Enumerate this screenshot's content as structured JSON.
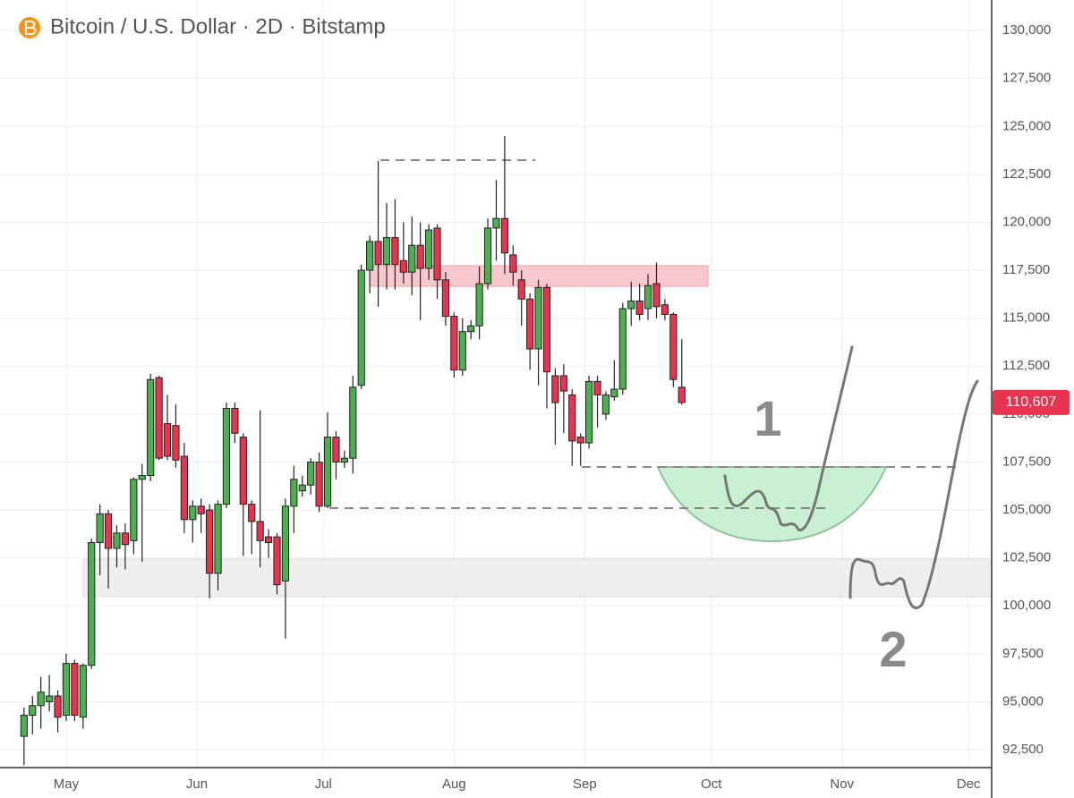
{
  "chart_data": {
    "type": "candlestick",
    "title": "Bitcoin / U.S. Dollar · 2D · Bitstamp",
    "x": [
      -10,
      -8,
      -6,
      -4,
      -2,
      0,
      2,
      4,
      6,
      8,
      10,
      12,
      14,
      16,
      18,
      20,
      22,
      24,
      26,
      28,
      30,
      32,
      34,
      36,
      38,
      40,
      42,
      44,
      46,
      48,
      50,
      52,
      54,
      56,
      58,
      60,
      62,
      64,
      66,
      68,
      70,
      72,
      74,
      76,
      78,
      80,
      82,
      84,
      86,
      88,
      90,
      92,
      94,
      96,
      98,
      100,
      102,
      104,
      106,
      108,
      110,
      112,
      114,
      116,
      118,
      120,
      122,
      124,
      126,
      128,
      130,
      132,
      134,
      136,
      138,
      140,
      142,
      144,
      146
    ],
    "open": [
      93200,
      94300,
      94800,
      95000,
      95300,
      94300,
      97000,
      94200,
      96900,
      103300,
      104800,
      103000,
      103800,
      103400,
      106600,
      106800,
      111900,
      109500,
      109400,
      107800,
      104500,
      105200,
      105000,
      101700,
      105300,
      110300,
      108800,
      105300,
      104400,
      103600,
      103600,
      101300,
      105200,
      106000,
      106300,
      107500,
      105200,
      108800,
      107500,
      107700,
      111500,
      117500,
      119000,
      117800,
      119200,
      118000,
      117400,
      118800,
      117600,
      119700,
      117000,
      115100,
      112300,
      114300,
      114600,
      116800,
      119700,
      120200,
      118300,
      117000,
      116000,
      113400,
      116600,
      112000,
      112000,
      111000,
      108800,
      108500,
      111700,
      110000,
      110900,
      111300,
      115500,
      115900,
      115500,
      116800,
      115700,
      115200,
      111400
    ],
    "high": [
      94700,
      95300,
      96300,
      96400,
      95600,
      97500,
      97200,
      97000,
      103500,
      105300,
      105000,
      104200,
      104300,
      106700,
      107400,
      112100,
      112000,
      111000,
      110500,
      108500,
      105500,
      105600,
      105300,
      105500,
      110600,
      110600,
      109000,
      105500,
      110200,
      104000,
      103800,
      105600,
      107300,
      106800,
      107700,
      108000,
      110100,
      109100,
      108100,
      112000,
      117800,
      119300,
      123200,
      121000,
      121200,
      120000,
      120300,
      120000,
      119900,
      119900,
      117400,
      115300,
      115000,
      114900,
      117700,
      120200,
      122200,
      124500,
      118800,
      117500,
      116300,
      117000,
      116800,
      112400,
      112600,
      111300,
      109000,
      112000,
      112000,
      111200,
      112800,
      115800,
      116900,
      116800,
      117300,
      117900,
      116000,
      115300,
      113900
    ],
    "low": [
      91700,
      93300,
      93600,
      94500,
      93400,
      94000,
      94000,
      93600,
      96700,
      101600,
      100900,
      102000,
      101900,
      102700,
      102300,
      106500,
      107600,
      107600,
      107200,
      103800,
      103300,
      103800,
      100400,
      100800,
      105100,
      108500,
      102600,
      102700,
      102000,
      102500,
      100600,
      98300,
      103800,
      105700,
      105800,
      104900,
      105100,
      106600,
      107200,
      106900,
      111300,
      116300,
      115600,
      116500,
      116500,
      116800,
      116200,
      114900,
      117000,
      116000,
      114600,
      111900,
      112000,
      113900,
      113900,
      116500,
      118000,
      117300,
      116700,
      114600,
      112300,
      111500,
      110300,
      108400,
      109000,
      107300,
      107300,
      108200,
      109300,
      109700,
      110700,
      111000,
      114600,
      114900,
      114900,
      115000,
      114900,
      111400,
      110500
    ],
    "close": [
      94300,
      94800,
      95500,
      95300,
      94200,
      97000,
      94300,
      96900,
      103300,
      104800,
      103000,
      103800,
      103200,
      106600,
      106800,
      111800,
      107700,
      107800,
      107600,
      104500,
      105200,
      104800,
      101700,
      105300,
      110300,
      109000,
      105300,
      104400,
      103400,
      103300,
      101100,
      105200,
      106600,
      106300,
      107500,
      105200,
      108800,
      107500,
      107700,
      111400,
      117500,
      119000,
      117800,
      119200,
      117800,
      117400,
      118800,
      117600,
      119600,
      117000,
      115100,
      112300,
      114300,
      114600,
      116800,
      119700,
      120200,
      118400,
      117400,
      116000,
      113400,
      116600,
      112200,
      110600,
      111200,
      108600,
      108500,
      111700,
      111000,
      111000,
      111300,
      115500,
      115900,
      115200,
      116700,
      115600,
      115200,
      111800,
      110607
    ],
    "up_color": "#4caf50",
    "down_color": "#e8344e",
    "xlim": [
      -15.7,
      219.5
    ],
    "xticks": [
      {
        "value": 0,
        "label": "May"
      },
      {
        "value": 31,
        "label": "Jun"
      },
      {
        "value": 61,
        "label": "Jul"
      },
      {
        "value": 92,
        "label": "Aug"
      },
      {
        "value": 123,
        "label": "Sep"
      },
      {
        "value": 153,
        "label": "Oct"
      },
      {
        "value": 184,
        "label": "Nov"
      },
      {
        "value": 214,
        "label": "Dec"
      }
    ],
    "ylim": [
      91570,
      131590
    ],
    "yticks": [
      {
        "value": 92500,
        "label": "92,500"
      },
      {
        "value": 95000,
        "label": "95,000"
      },
      {
        "value": 97500,
        "label": "97,500"
      },
      {
        "value": 100000,
        "label": "100,000"
      },
      {
        "value": 102500,
        "label": "102,500"
      },
      {
        "value": 105000,
        "label": "105,000"
      },
      {
        "value": 107500,
        "label": "107,500"
      },
      {
        "value": 110000,
        "label": "110,000"
      },
      {
        "value": 112500,
        "label": "112,500"
      },
      {
        "value": 115000,
        "label": "115,000"
      },
      {
        "value": 117500,
        "label": "117,500"
      },
      {
        "value": 120000,
        "label": "120,000"
      },
      {
        "value": 122500,
        "label": "122,500"
      },
      {
        "value": 125000,
        "label": "125,000"
      },
      {
        "value": 127500,
        "label": "127,500"
      },
      {
        "value": 130000,
        "label": "130,000"
      }
    ],
    "grid": true,
    "last_price": {
      "value": 110607,
      "label": "110,607"
    },
    "annotations": [
      "1",
      "2"
    ]
  }
}
